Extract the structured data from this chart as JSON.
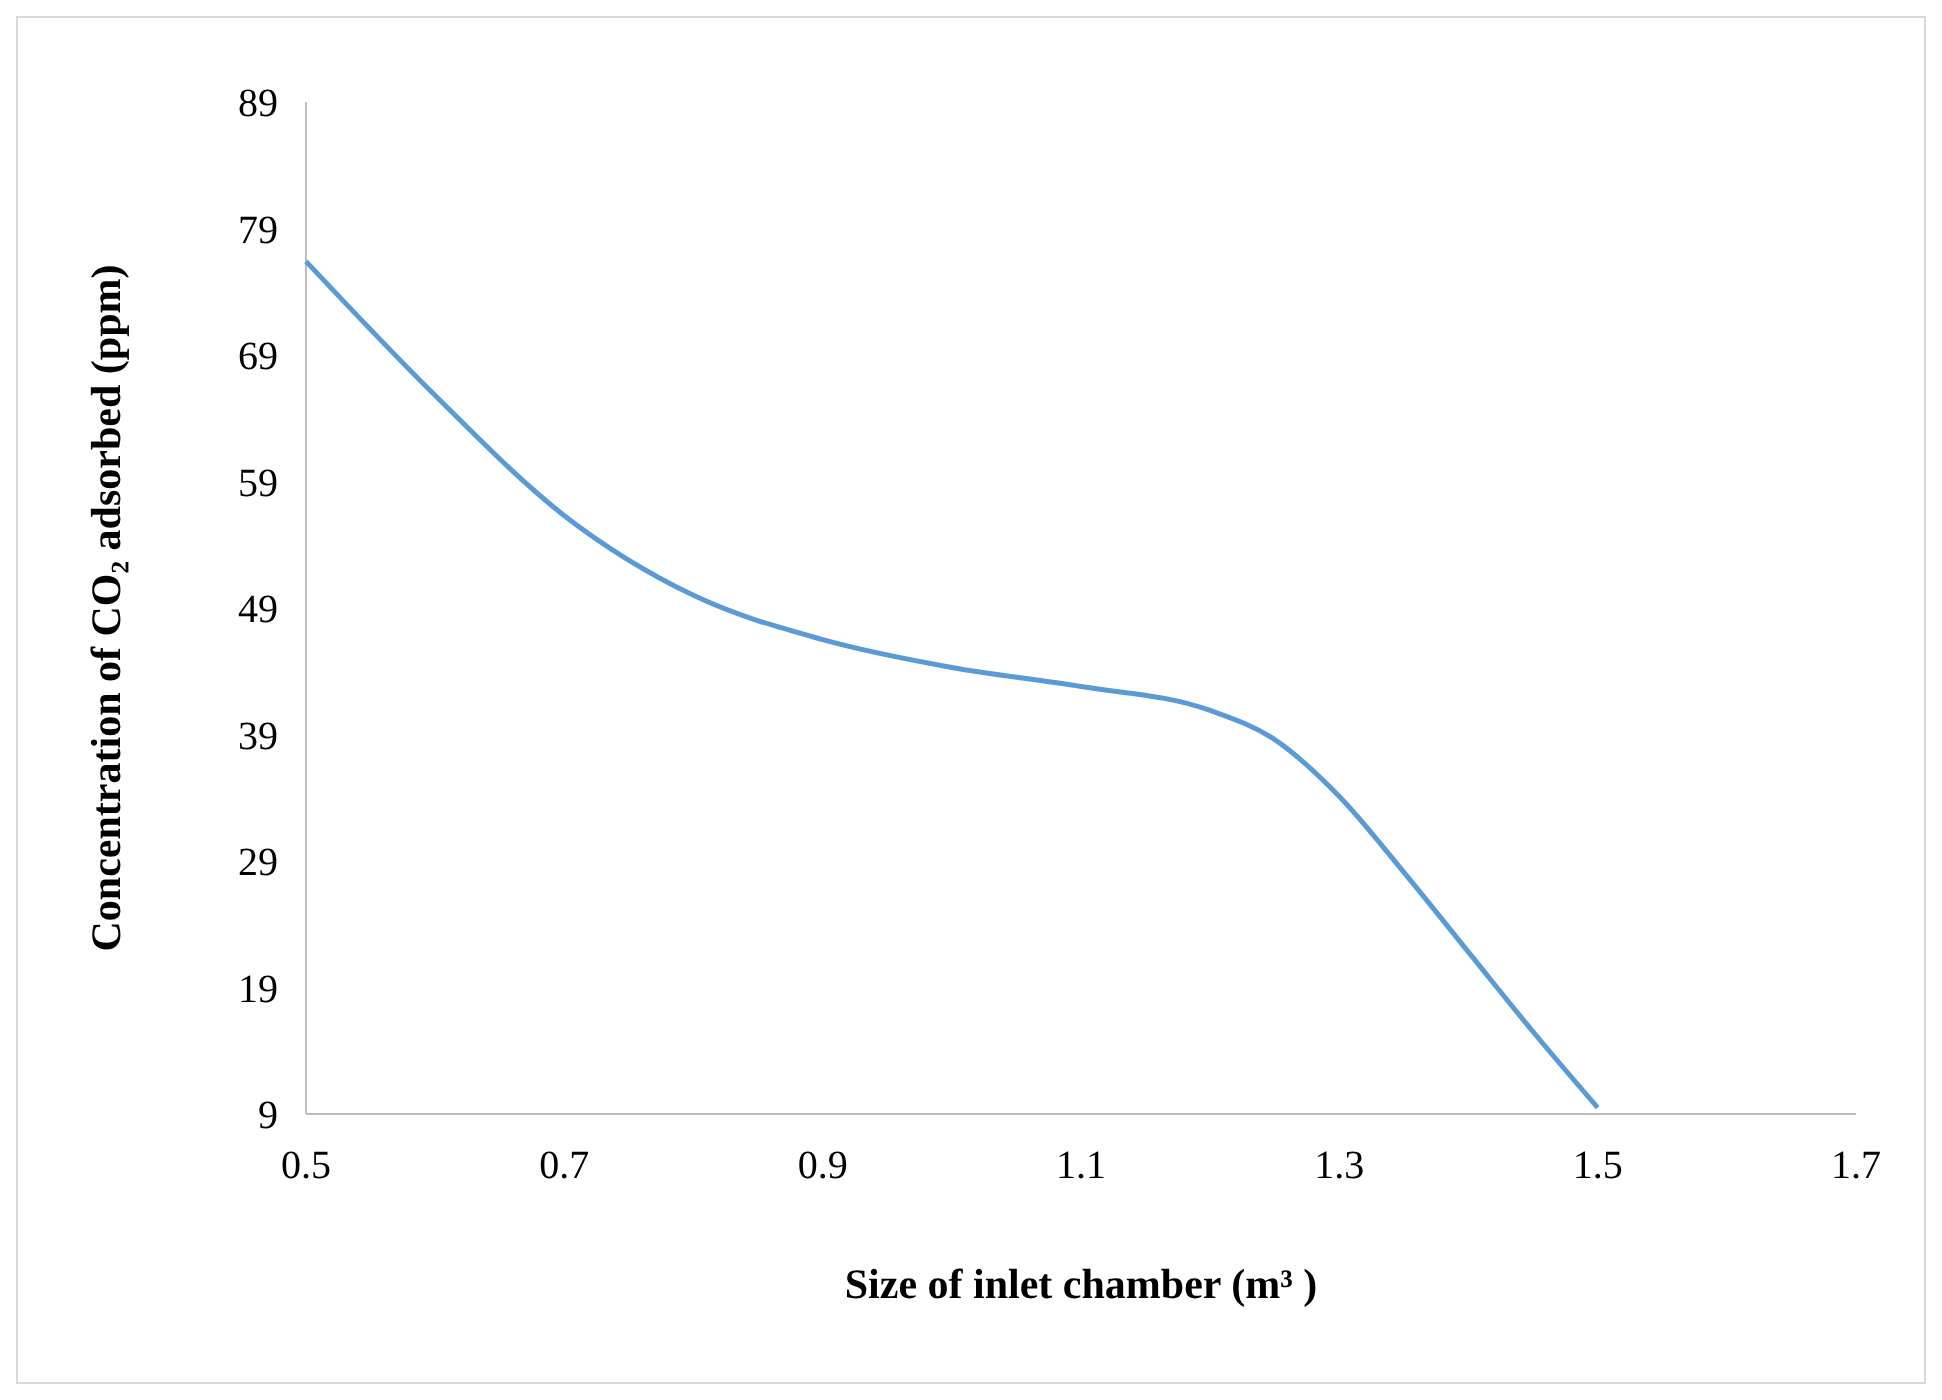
{
  "chart_data": {
    "type": "line",
    "xlabel": "Size of inlet chamber (m³ )",
    "ylabel": "Concentration of CO₂ adsorbed (ppm)",
    "x": [
      0.5,
      0.6,
      0.7,
      0.8,
      0.9,
      1.0,
      1.1,
      1.2,
      1.25,
      1.3,
      1.35,
      1.4,
      1.45,
      1.5
    ],
    "series": [
      {
        "color": "#5b9bd5",
        "values": [
          76.4,
          65.8,
          56.3,
          50,
          46.5,
          44.3,
          42.8,
          40.9,
          38.6,
          34.1,
          28.1,
          21.8,
          15.5,
          9.5
        ]
      }
    ],
    "xlim": [
      0.5,
      1.7
    ],
    "xticks": [
      0.5,
      0.7,
      0.9,
      1.1,
      1.3,
      1.5,
      1.7
    ],
    "ylim": [
      9,
      89
    ],
    "yticks": [
      9,
      19,
      29,
      39,
      49,
      59,
      69,
      79,
      89
    ],
    "grid": false,
    "marker": "none",
    "line_style": "solid"
  }
}
